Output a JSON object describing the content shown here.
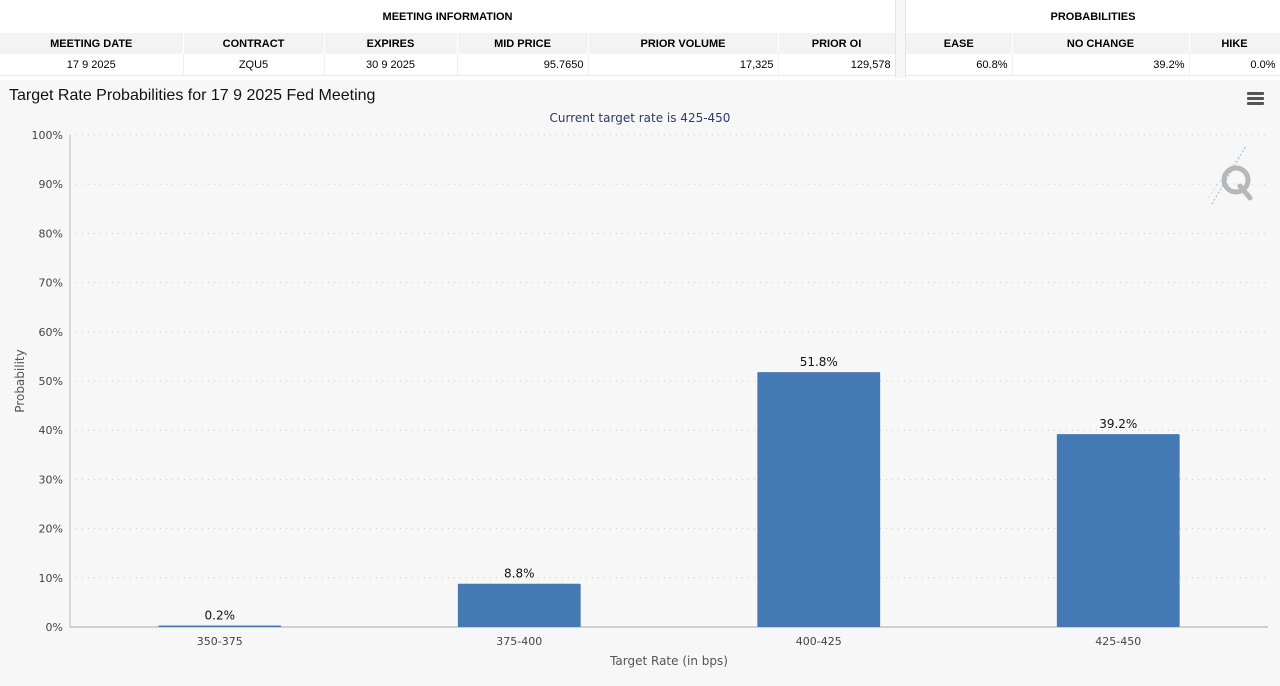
{
  "meeting_info": {
    "title": "MEETING INFORMATION",
    "columns": [
      "MEETING DATE",
      "CONTRACT",
      "EXPIRES",
      "MID PRICE",
      "PRIOR VOLUME",
      "PRIOR OI"
    ],
    "values": [
      "17 9 2025",
      "ZQU5",
      "30 9 2025",
      "95.7650",
      "17,325",
      "129,578"
    ]
  },
  "probabilities": {
    "title": "PROBABILITIES",
    "columns": [
      "EASE",
      "NO CHANGE",
      "HIKE"
    ],
    "values": [
      "60.8%",
      "39.2%",
      "0.0%"
    ]
  },
  "chart_title": "Target Rate Probabilities for 17 9 2025 Fed Meeting",
  "icons": {
    "menu": "hamburger-menu-icon",
    "watermark": "quikstrike-q-logo"
  },
  "colors": {
    "bar": "#4479b4",
    "subtitle": "#2b3a66",
    "panel_bg": "#f7f7f7"
  },
  "chart_data": {
    "type": "bar",
    "title": "Current target rate is 425-450",
    "xlabel": "Target Rate (in bps)",
    "ylabel": "Probability",
    "categories": [
      "350-375",
      "375-400",
      "400-425",
      "425-450"
    ],
    "values": [
      0.2,
      8.8,
      51.8,
      39.2
    ],
    "value_labels": [
      "0.2%",
      "8.8%",
      "51.8%",
      "39.2%"
    ],
    "ylim": [
      0,
      100
    ],
    "yticks": [
      0,
      10,
      20,
      30,
      40,
      50,
      60,
      70,
      80,
      90,
      100
    ],
    "ytick_labels": [
      "0%",
      "10%",
      "20%",
      "30%",
      "40%",
      "50%",
      "60%",
      "70%",
      "80%",
      "90%",
      "100%"
    ],
    "grid": true,
    "legend": "none"
  }
}
